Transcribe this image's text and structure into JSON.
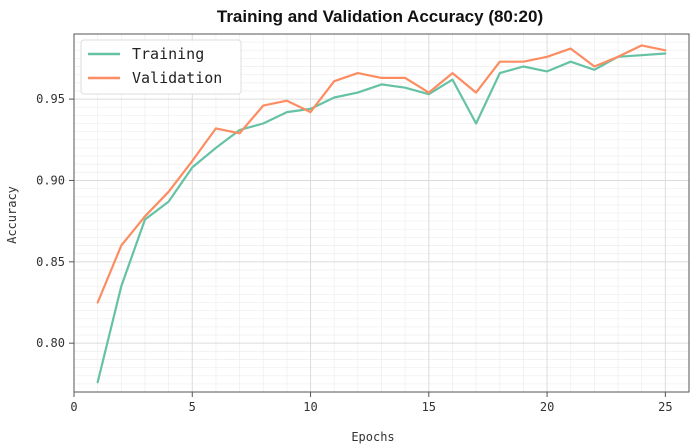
{
  "chart_data": {
    "type": "line",
    "title": "Training and Validation Accuracy (80:20)",
    "xlabel": "Epochs",
    "ylabel": "Accuracy",
    "xlim": [
      0,
      26
    ],
    "ylim": [
      0.77,
      0.99
    ],
    "xticks": [
      0,
      5,
      10,
      15,
      20,
      25
    ],
    "yticks": [
      0.8,
      0.85,
      0.9,
      0.95
    ],
    "xtick_labels": [
      "0",
      "5",
      "10",
      "15",
      "20",
      "25"
    ],
    "ytick_labels": [
      "0.80",
      "0.85",
      "0.90",
      "0.95"
    ],
    "grid": true,
    "legend_position": "top-left",
    "x": [
      1,
      2,
      3,
      4,
      5,
      6,
      7,
      8,
      9,
      10,
      11,
      12,
      13,
      14,
      15,
      16,
      17,
      18,
      19,
      20,
      21,
      22,
      23,
      24,
      25
    ],
    "series": [
      {
        "name": "Training",
        "color": "#66c2a5",
        "values": [
          0.776,
          0.835,
          0.876,
          0.887,
          0.908,
          0.92,
          0.931,
          0.935,
          0.942,
          0.944,
          0.951,
          0.954,
          0.959,
          0.957,
          0.953,
          0.962,
          0.935,
          0.966,
          0.97,
          0.967,
          0.973,
          0.968,
          0.976,
          0.977,
          0.978
        ]
      },
      {
        "name": "Validation",
        "color": "#fc8d62",
        "values": [
          0.825,
          0.86,
          0.878,
          0.893,
          0.912,
          0.932,
          0.929,
          0.946,
          0.949,
          0.942,
          0.961,
          0.966,
          0.963,
          0.963,
          0.954,
          0.966,
          0.954,
          0.973,
          0.973,
          0.976,
          0.981,
          0.97,
          0.976,
          0.983,
          0.98
        ]
      }
    ]
  }
}
